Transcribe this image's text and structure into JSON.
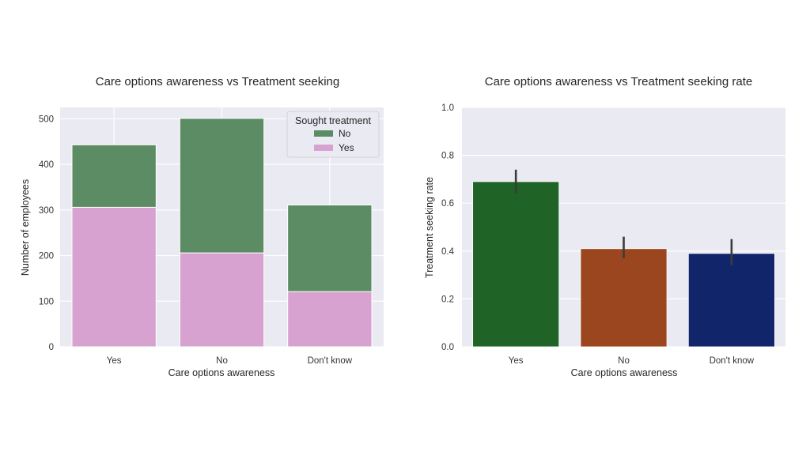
{
  "chart_data": [
    {
      "type": "bar",
      "stacked": true,
      "title": "Care options awareness vs Treatment seeking",
      "xlabel": "Care options awareness",
      "ylabel": "Number of employees",
      "categories": [
        "Yes",
        "No",
        "Don't know"
      ],
      "series": [
        {
          "name": "Yes",
          "values": [
            306,
            206,
            121
          ],
          "color": "#d8a2d0"
        },
        {
          "name": "No",
          "values": [
            137,
            295,
            190
          ],
          "color": "#5b8c63"
        }
      ],
      "ylim": [
        0,
        525
      ],
      "yticks": [
        0,
        100,
        200,
        300,
        400,
        500
      ],
      "grid": true,
      "legend": {
        "title": "Sought treatment",
        "entries": [
          "No",
          "Yes"
        ],
        "placement": "top-right"
      }
    },
    {
      "type": "bar",
      "title": "Care options awareness vs Treatment seeking rate",
      "xlabel": "Care options awareness",
      "ylabel": "Treatment seeking rate",
      "categories": [
        "Yes",
        "No",
        "Don't know"
      ],
      "values": [
        0.69,
        0.41,
        0.39
      ],
      "error_low": [
        0.64,
        0.37,
        0.34
      ],
      "error_high": [
        0.74,
        0.46,
        0.45
      ],
      "colors": [
        "#1f6327",
        "#9c4620",
        "#11256b"
      ],
      "ylim": [
        0,
        1.0
      ],
      "yticks": [
        "0.0",
        "0.2",
        "0.4",
        "0.6",
        "0.8",
        "1.0"
      ],
      "grid": true
    }
  ]
}
